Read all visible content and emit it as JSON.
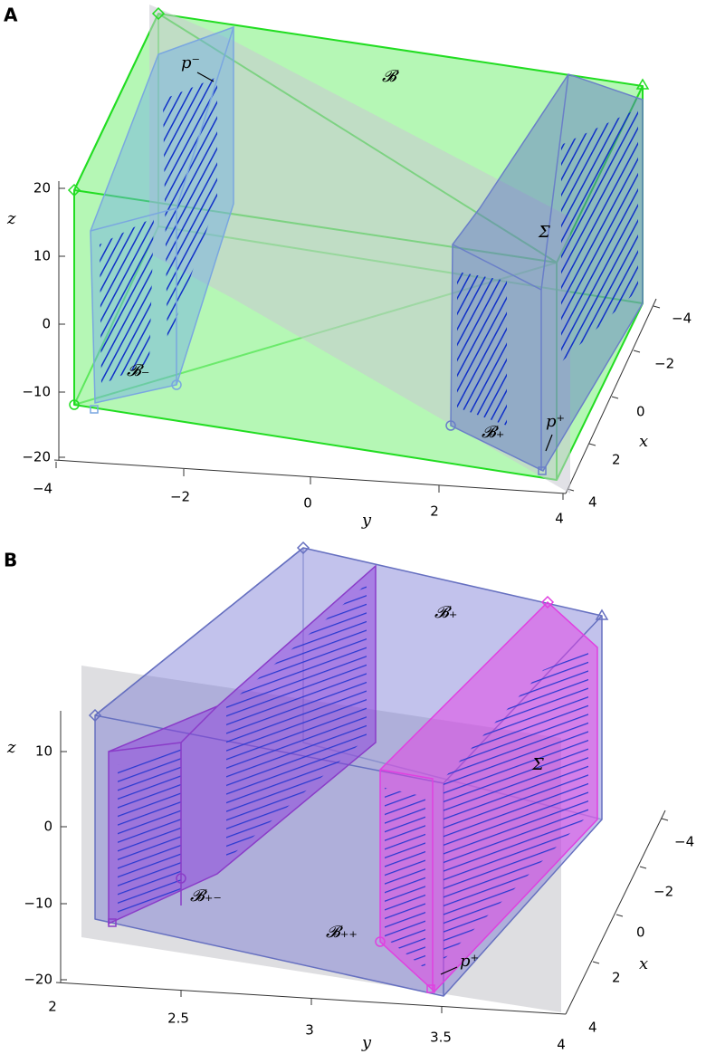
{
  "panels": [
    {
      "label": "A",
      "axes": {
        "z": {
          "label": "z",
          "ticks": [
            "20",
            "10",
            "0",
            "−10",
            "−20"
          ]
        },
        "y": {
          "label": "y",
          "ticks": [
            "−4",
            "−2",
            "0",
            "2",
            "4"
          ]
        },
        "x": {
          "label": "x",
          "ticks": [
            "−4",
            "−2",
            "0",
            "2",
            "4"
          ]
        }
      },
      "annotations": [
        "𝓑",
        "p⁻",
        "Σ",
        "𝓑₋",
        "𝓑₊",
        "p⁺"
      ]
    },
    {
      "label": "B",
      "axes": {
        "z": {
          "label": "z",
          "ticks": [
            "10",
            "0",
            "−10",
            "−20"
          ]
        },
        "y": {
          "label": "y",
          "ticks": [
            "2",
            "2.5",
            "3",
            "3.5",
            "4"
          ]
        },
        "x": {
          "label": "x",
          "ticks": [
            "−4",
            "−2",
            "0",
            "2",
            "4"
          ]
        }
      },
      "annotations": [
        "𝓑₊",
        "Σ",
        "𝓑₊₋",
        "𝓑₊₊",
        "p⁺"
      ]
    }
  ]
}
